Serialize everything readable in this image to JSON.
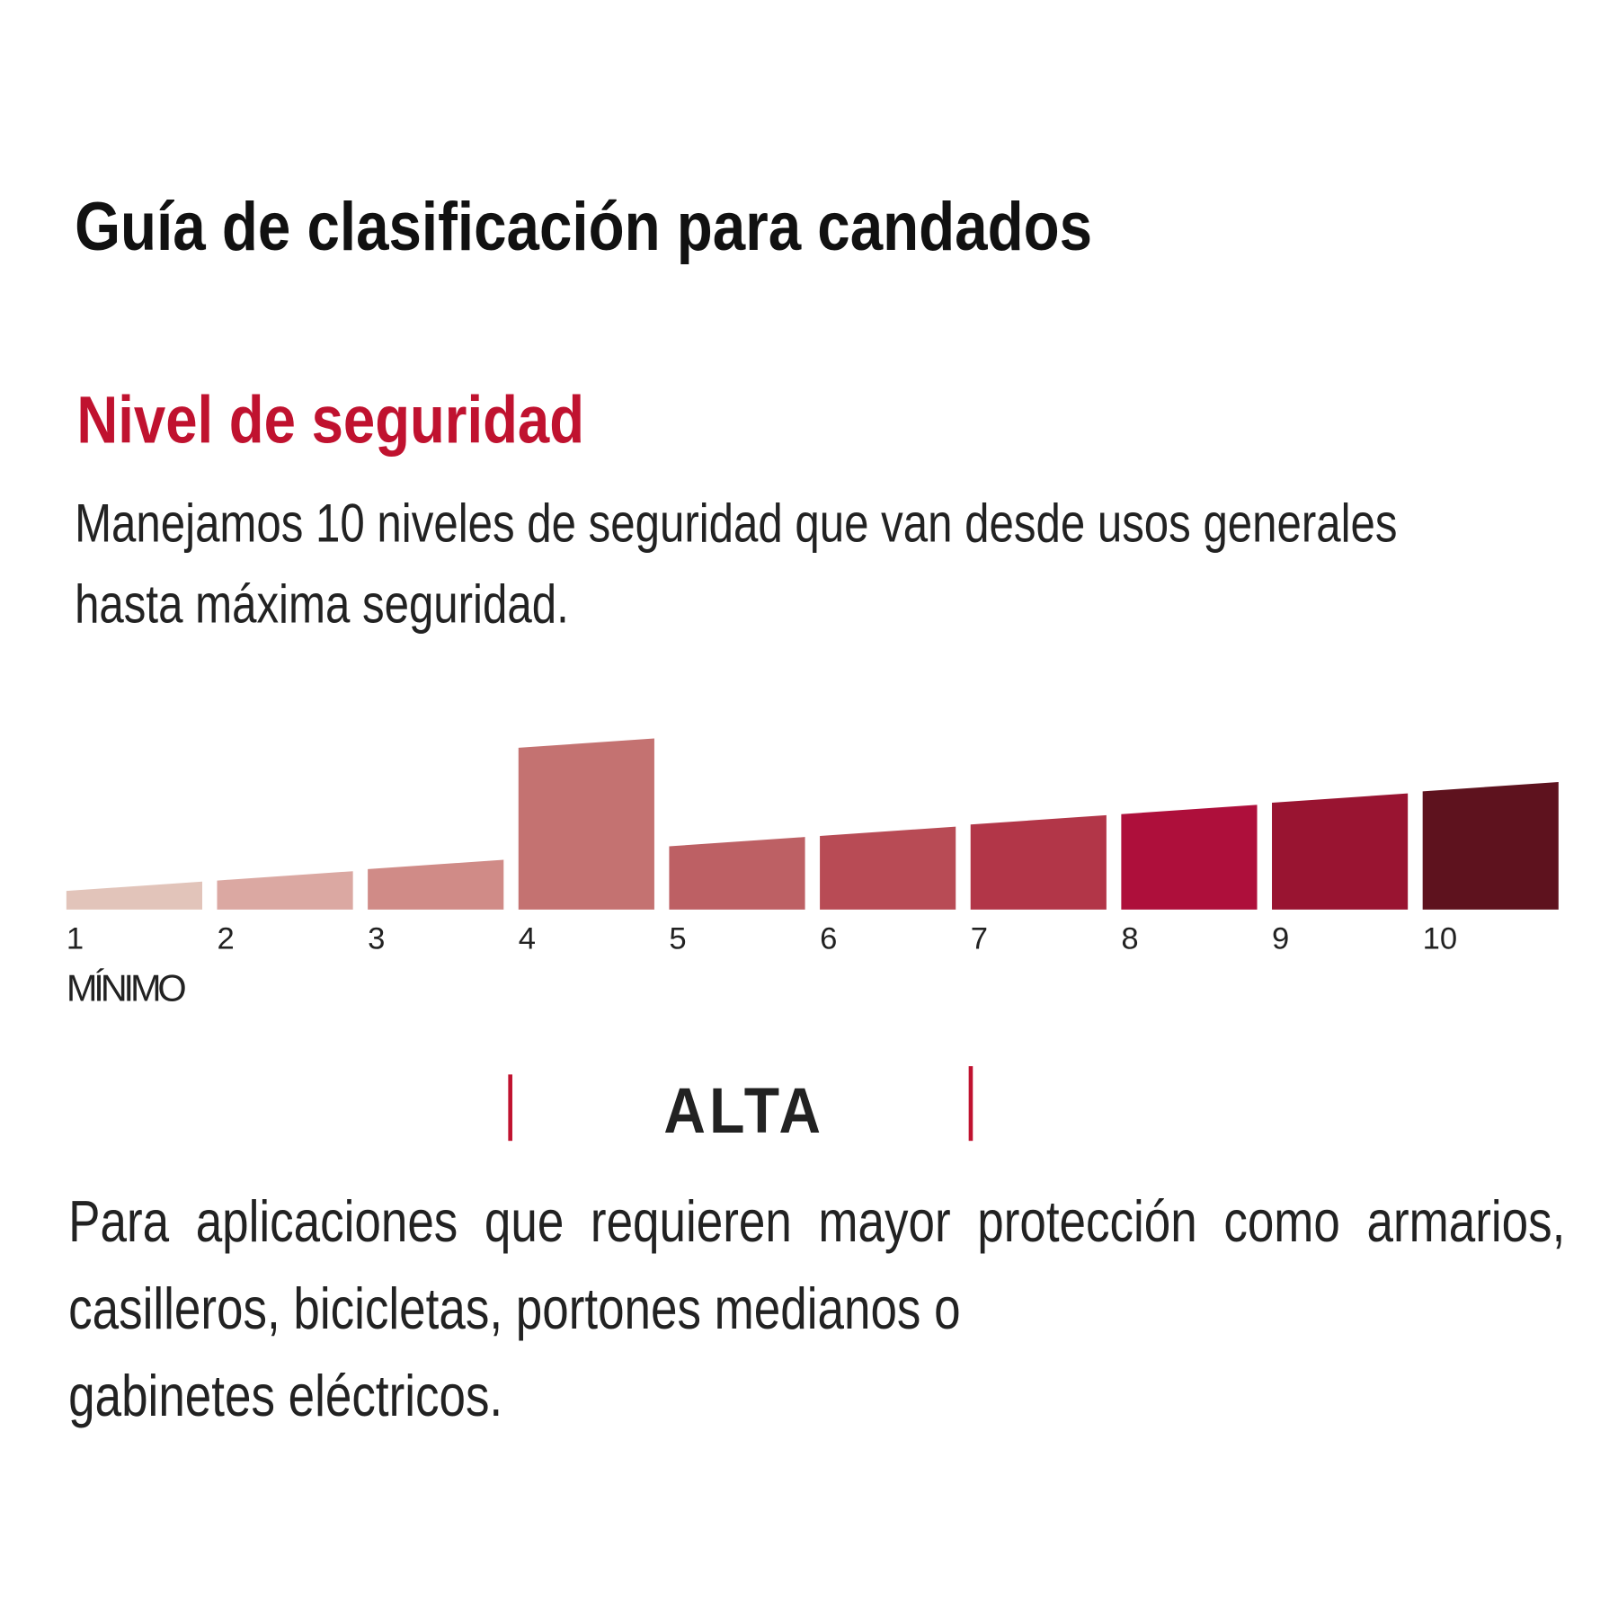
{
  "title": "Guía de clasificación para candados",
  "subtitle": "Nivel de seguridad",
  "description": "Manejamos 10 niveles de seguridad que van desde usos generales hasta máxima seguridad.",
  "chart_data": {
    "type": "bar",
    "categories": [
      "1",
      "2",
      "3",
      "4",
      "5",
      "6",
      "7",
      "8",
      "9",
      "10"
    ],
    "values": [
      27,
      37,
      48,
      165,
      70,
      80,
      91,
      101,
      112,
      123
    ],
    "colors": [
      "#e2c4ba",
      "#dba8a2",
      "#d08b87",
      "#c47271",
      "#bd6064",
      "#b84b55",
      "#b23648",
      "#ae0f3b",
      "#991431",
      "#5e121e"
    ],
    "highlighted": "4",
    "min_label": "MÍNIMO",
    "title": "",
    "xlabel": "",
    "ylabel": ""
  },
  "level": {
    "name": "ALTA",
    "accent": "#c0122f"
  },
  "body_text": "Para aplicaciones que requieren mayor protección como armarios, casilleros, bicicletas, portones medianos o",
  "body_text_last": "gabinetes eléctricos."
}
